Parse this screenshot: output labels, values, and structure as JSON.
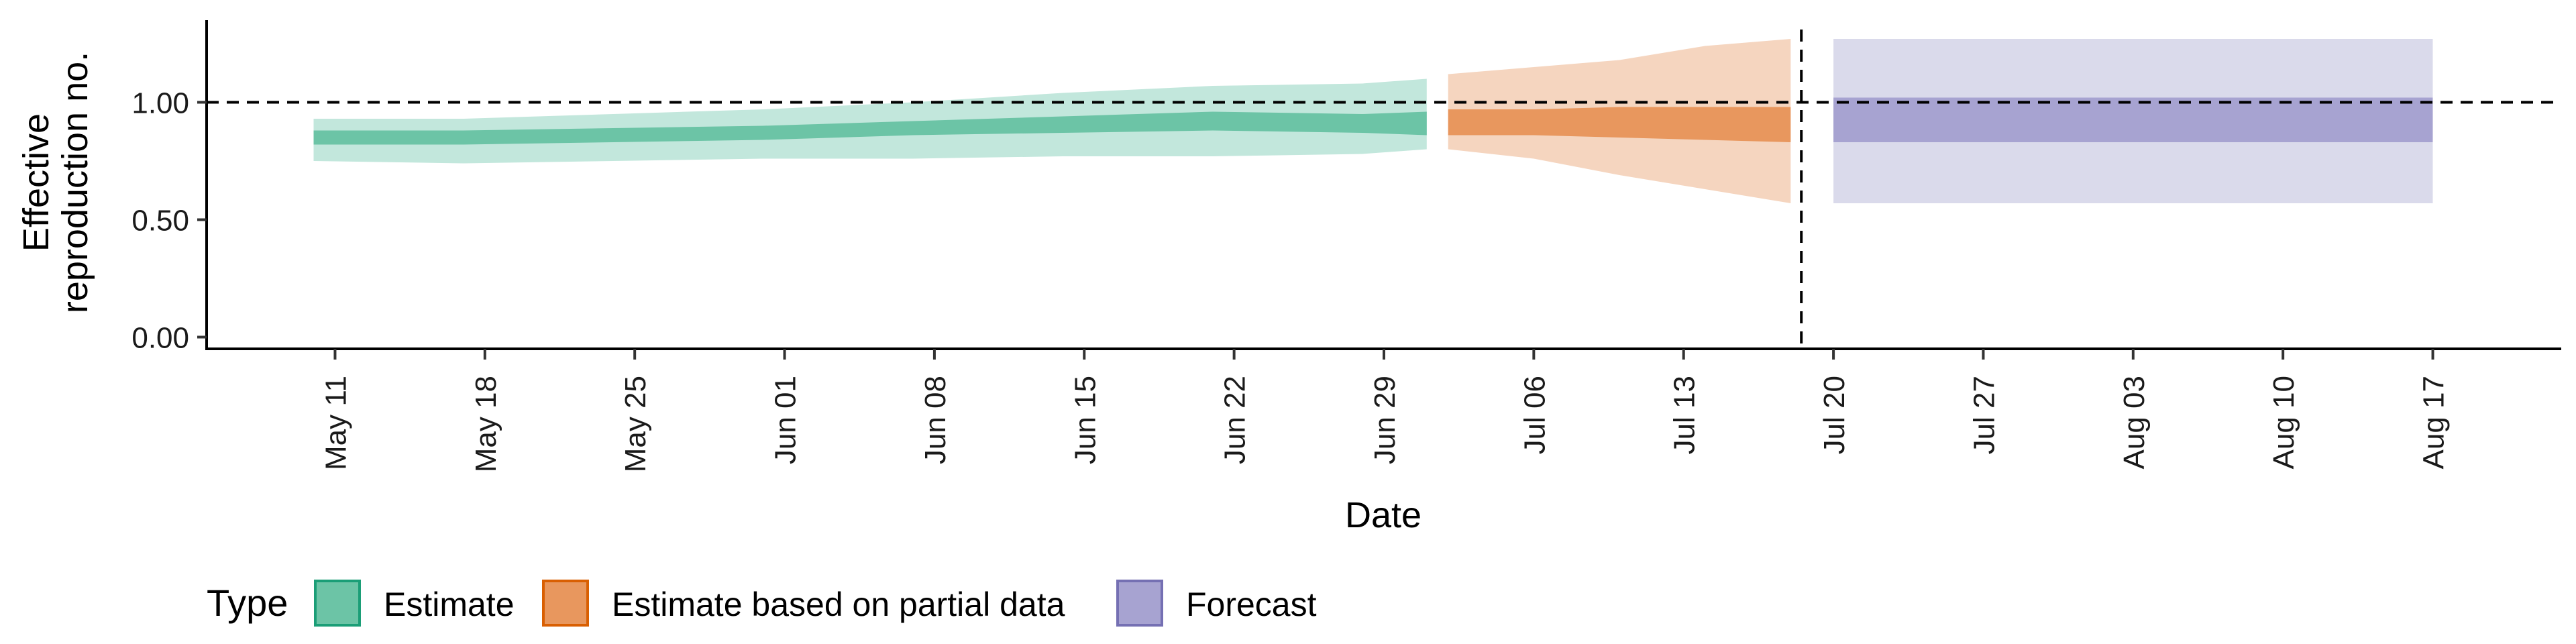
{
  "chart_data": {
    "type": "area",
    "title": "",
    "xlabel": "Date",
    "ylabel_lines": [
      "Effective",
      "reproduction no."
    ],
    "x_ticks": [
      "May 11",
      "May 18",
      "May 25",
      "Jun 01",
      "Jun 08",
      "Jun 15",
      "Jun 22",
      "Jun 29",
      "Jul 06",
      "Jul 13",
      "Jul 20",
      "Jul 27",
      "Aug 03",
      "Aug 10",
      "Aug 17"
    ],
    "y_ticks": [
      "0.00",
      "0.50",
      "1.00"
    ],
    "ylim": [
      -0.05,
      1.35
    ],
    "xlim_days": [
      -6,
      104
    ],
    "reference_hline": 1.0,
    "reference_vline_day": 68.5,
    "legend_title": "Type",
    "series": [
      {
        "name": "Estimate",
        "color_light": "#c2e7dc",
        "color_dark": "#6cc4a6",
        "border": "#1b9e77",
        "points": [
          {
            "day": -1,
            "lo90": 0.75,
            "hi90": 0.93,
            "lo50": 0.82,
            "hi50": 0.88
          },
          {
            "day": 6,
            "lo90": 0.74,
            "hi90": 0.93,
            "lo50": 0.82,
            "hi50": 0.88
          },
          {
            "day": 13,
            "lo90": 0.75,
            "hi90": 0.95,
            "lo50": 0.83,
            "hi50": 0.89
          },
          {
            "day": 20,
            "lo90": 0.76,
            "hi90": 0.97,
            "lo50": 0.84,
            "hi50": 0.9
          },
          {
            "day": 27,
            "lo90": 0.76,
            "hi90": 1.0,
            "lo50": 0.86,
            "hi50": 0.92
          },
          {
            "day": 34,
            "lo90": 0.77,
            "hi90": 1.04,
            "lo50": 0.87,
            "hi50": 0.94
          },
          {
            "day": 41,
            "lo90": 0.77,
            "hi90": 1.07,
            "lo50": 0.88,
            "hi50": 0.96
          },
          {
            "day": 48,
            "lo90": 0.78,
            "hi90": 1.08,
            "lo50": 0.87,
            "hi50": 0.95
          },
          {
            "day": 51,
            "lo90": 0.8,
            "hi90": 1.1,
            "lo50": 0.86,
            "hi50": 0.96
          }
        ]
      },
      {
        "name": "Estimate based on partial data",
        "color_light": "#f5d5bf",
        "color_dark": "#e8975e",
        "border": "#d95f02",
        "points": [
          {
            "day": 52,
            "lo90": 0.8,
            "hi90": 1.12,
            "lo50": 0.86,
            "hi50": 0.97
          },
          {
            "day": 56,
            "lo90": 0.76,
            "hi90": 1.15,
            "lo50": 0.86,
            "hi50": 0.97
          },
          {
            "day": 60,
            "lo90": 0.69,
            "hi90": 1.18,
            "lo50": 0.85,
            "hi50": 0.98
          },
          {
            "day": 64,
            "lo90": 0.63,
            "hi90": 1.24,
            "lo50": 0.84,
            "hi50": 0.98
          },
          {
            "day": 68,
            "lo90": 0.57,
            "hi90": 1.27,
            "lo50": 0.83,
            "hi50": 0.98
          }
        ]
      },
      {
        "name": "Forecast",
        "color_light": "#dadaeb",
        "color_dark": "#a7a3d1",
        "border": "#7570b3",
        "points": [
          {
            "day": 70,
            "lo90": 0.57,
            "hi90": 1.27,
            "lo50": 0.83,
            "hi50": 1.02
          },
          {
            "day": 98,
            "lo90": 0.57,
            "hi90": 1.27,
            "lo50": 0.83,
            "hi50": 1.02
          }
        ]
      }
    ]
  }
}
